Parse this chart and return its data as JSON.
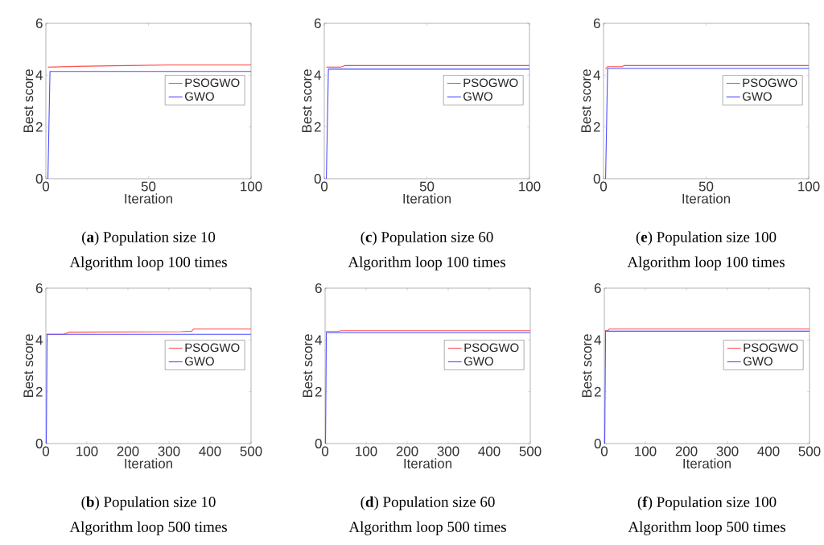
{
  "chart_data": [
    {
      "type": "line",
      "title": "(**a**) Population size 10",
      "subtitle": "Algorithm loop 100 times",
      "xlabel": "Iteration",
      "ylabel": "Best score",
      "xlim": [
        0,
        100
      ],
      "ylim": [
        0,
        6
      ],
      "xticks": [
        0,
        50,
        100
      ],
      "yticks": [
        0,
        2,
        4,
        6
      ],
      "legend": "right",
      "series": [
        {
          "name": "PSOGWO",
          "color": "#ff4d4d",
          "x": [
            1,
            15,
            40,
            60,
            100
          ],
          "values": [
            4.31,
            4.34,
            4.37,
            4.39,
            4.39
          ]
        },
        {
          "name": "GWO",
          "color": "#4d4dff",
          "x": [
            1,
            2,
            100
          ],
          "values": [
            0,
            4.14,
            4.14
          ]
        }
      ]
    },
    {
      "type": "line",
      "title": "(**c**) Population size 60",
      "subtitle": "Algorithm loop 100 times",
      "xlabel": "Iteration",
      "ylabel": "Best score",
      "xlim": [
        0,
        100
      ],
      "ylim": [
        0,
        6
      ],
      "xticks": [
        0,
        50,
        100
      ],
      "yticks": [
        0,
        2,
        4,
        6
      ],
      "legend": "right",
      "series": [
        {
          "name": "PSOGWO",
          "color": "#ff4d4d",
          "x": [
            1,
            8,
            10,
            100
          ],
          "values": [
            4.31,
            4.31,
            4.37,
            4.37
          ]
        },
        {
          "name": "GWO",
          "color": "#4d4dff",
          "x": [
            1,
            2,
            100
          ],
          "values": [
            0,
            4.23,
            4.23
          ]
        }
      ]
    },
    {
      "type": "line",
      "title": "(**e**) Population size 100",
      "subtitle": "Algorithm loop 100 times",
      "xlabel": "Iteration",
      "ylabel": "Best score",
      "xlim": [
        0,
        100
      ],
      "ylim": [
        0,
        6
      ],
      "xticks": [
        0,
        50,
        100
      ],
      "yticks": [
        0,
        2,
        4,
        6
      ],
      "legend": "right",
      "series": [
        {
          "name": "PSOGWO",
          "color": "#ff4d4d",
          "x": [
            1,
            2,
            9,
            10,
            100
          ],
          "values": [
            4.24,
            4.33,
            4.33,
            4.37,
            4.37
          ]
        },
        {
          "name": "GWO",
          "color": "#4d4dff",
          "x": [
            1,
            2,
            100
          ],
          "values": [
            0,
            4.26,
            4.26
          ]
        }
      ]
    },
    {
      "type": "line",
      "title": "(**b**) Population size 10",
      "subtitle": "Algorithm loop 500 times",
      "xlabel": "Iteration",
      "ylabel": "Best score",
      "xlim": [
        0,
        500
      ],
      "ylim": [
        0,
        6
      ],
      "xticks": [
        0,
        100,
        200,
        300,
        400,
        500
      ],
      "yticks": [
        0,
        2,
        4,
        6
      ],
      "legend": "right",
      "series": [
        {
          "name": "PSOGWO",
          "color": "#ff4d4d",
          "x": [
            1,
            45,
            55,
            330,
            355,
            360,
            500
          ],
          "values": [
            4.22,
            4.22,
            4.3,
            4.32,
            4.34,
            4.42,
            4.42
          ]
        },
        {
          "name": "GWO",
          "color": "#4d4dff",
          "x": [
            1,
            3,
            500
          ],
          "values": [
            0,
            4.22,
            4.22
          ]
        }
      ]
    },
    {
      "type": "line",
      "title": "(**d**) Population size 60",
      "subtitle": "Algorithm loop 500 times",
      "xlabel": "Iteration",
      "ylabel": "Best score",
      "xlim": [
        0,
        500
      ],
      "ylim": [
        0,
        6
      ],
      "xticks": [
        0,
        100,
        200,
        300,
        400,
        500
      ],
      "yticks": [
        0,
        2,
        4,
        6
      ],
      "legend": "right",
      "series": [
        {
          "name": "PSOGWO",
          "color": "#ff4d4d",
          "x": [
            1,
            30,
            40,
            500
          ],
          "values": [
            4.33,
            4.33,
            4.36,
            4.36
          ]
        },
        {
          "name": "GWO",
          "color": "#4d4dff",
          "x": [
            1,
            3,
            500
          ],
          "values": [
            0,
            4.28,
            4.28
          ]
        }
      ]
    },
    {
      "type": "line",
      "title": "(**f**) Population size 100",
      "subtitle": "Algorithm loop 500 times",
      "xlabel": "Iteration",
      "ylabel": "Best score",
      "xlim": [
        0,
        500
      ],
      "ylim": [
        0,
        6
      ],
      "xticks": [
        0,
        100,
        200,
        300,
        400,
        500
      ],
      "yticks": [
        0,
        2,
        4,
        6
      ],
      "legend": "right",
      "series": [
        {
          "name": "PSOGWO",
          "color": "#ff4d4d",
          "x": [
            1,
            8,
            12,
            500
          ],
          "values": [
            4.36,
            4.36,
            4.42,
            4.42
          ]
        },
        {
          "name": "GWO",
          "color": "#4d4dff",
          "x": [
            1,
            3,
            500
          ],
          "values": [
            0,
            4.34,
            4.34
          ]
        }
      ]
    }
  ]
}
